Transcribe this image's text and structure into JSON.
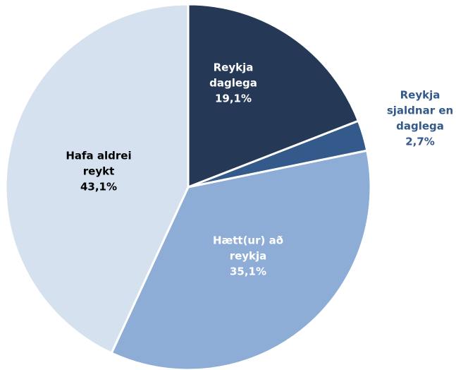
{
  "chart_data": {
    "type": "pie",
    "categories": [
      [
        "Reykja",
        "daglega"
      ],
      [
        "Reykja",
        "sjaldnar en",
        "daglega"
      ],
      [
        "Hætt(ur) að",
        "reykja"
      ],
      [
        "Hafa aldrei",
        "reykt"
      ]
    ],
    "values": [
      19.1,
      2.7,
      35.1,
      43.1
    ],
    "value_labels": [
      "19,1%",
      "2,7%",
      "35,1%",
      "43,1%"
    ],
    "colors": [
      "#253856",
      "#335a8a",
      "#8eadd6",
      "#d5e1ef"
    ]
  }
}
